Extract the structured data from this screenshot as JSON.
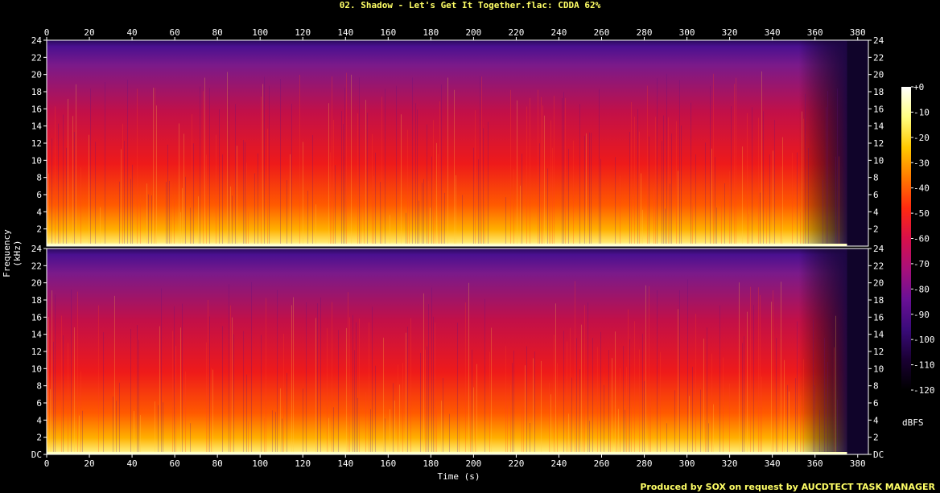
{
  "chart_data": {
    "type": "heatmap",
    "title": "02. Shadow - Let's Get It Together.flac: CDDA 62%",
    "xlabel": "Time (s)",
    "ylabel": "Frequency (kHz)",
    "x_ticks": [
      0,
      20,
      40,
      60,
      80,
      100,
      120,
      140,
      160,
      180,
      200,
      220,
      240,
      260,
      280,
      300,
      320,
      340,
      360,
      380
    ],
    "xlim": [
      0,
      385
    ],
    "channels": [
      {
        "y_ticks": [
          "24",
          "22",
          "20",
          "18",
          "16",
          "14",
          "12",
          "10",
          "8",
          "6",
          "4",
          "2"
        ],
        "ylim": [
          0,
          24
        ]
      },
      {
        "y_ticks": [
          "24",
          "22",
          "20",
          "18",
          "16",
          "14",
          "12",
          "10",
          "8",
          "6",
          "4",
          "2",
          "DC"
        ],
        "ylim": [
          0,
          24
        ]
      }
    ],
    "colorbar": {
      "unit": "dBFS",
      "ticks": [
        "+0",
        "-10",
        "-20",
        "-30",
        "-40",
        "-50",
        "-60",
        "-70",
        "-80",
        "-90",
        "-100",
        "-110",
        "-120"
      ],
      "range": [
        -120,
        0
      ]
    },
    "colors": [
      "#000000",
      "#1a0033",
      "#3a0b7a",
      "#6a1096",
      "#a8107a",
      "#d8104a",
      "#ff2a10",
      "#ff7a00",
      "#ffc800",
      "#ffff80",
      "#ffffff"
    ]
  },
  "footer": "Produced by SOX on request by AUCDTECT TASK MANAGER"
}
